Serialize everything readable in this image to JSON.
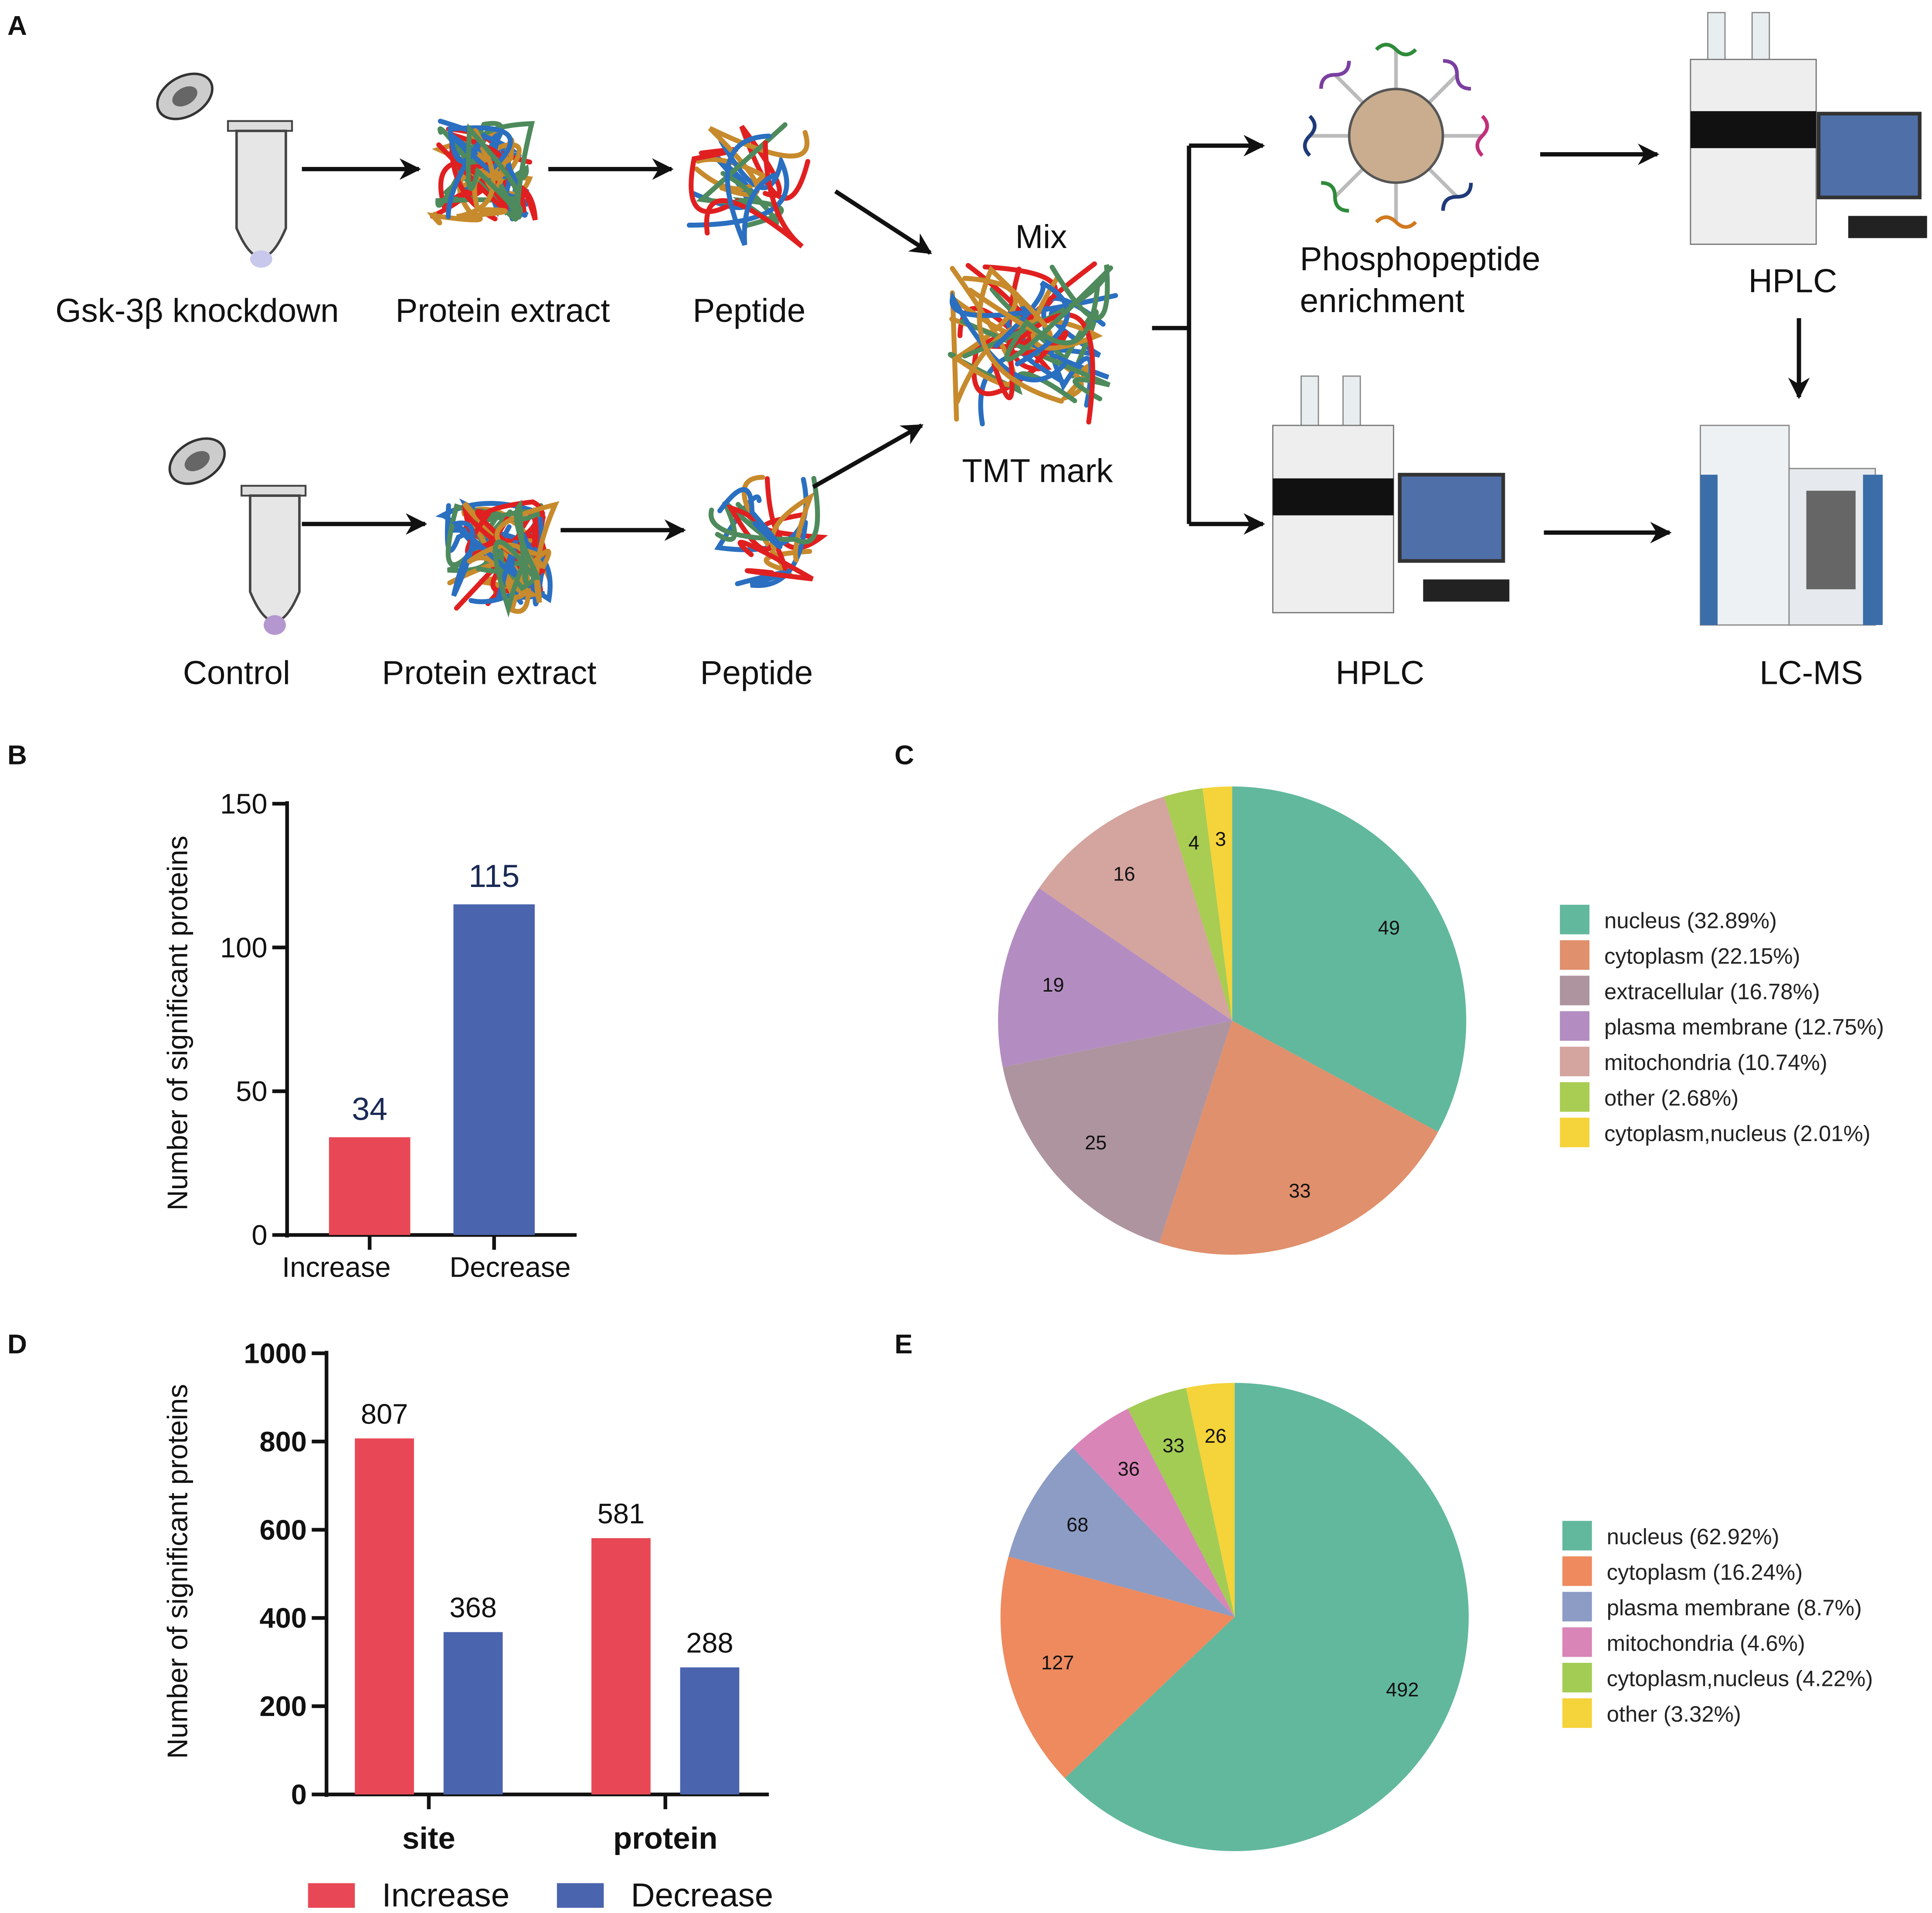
{
  "panels": {
    "a": "A",
    "b": "B",
    "c": "C",
    "d": "D",
    "e": "E"
  },
  "diagram": {
    "knockdown_label": "Gsk-3β knockdown",
    "control_label": "Control",
    "protein_extract_top": "Protein extract",
    "protein_extract_bottom": "Protein extract",
    "peptide_top": "Peptide",
    "peptide_bottom": "Peptide",
    "mix_label": "Mix",
    "tmt_label": "TMT mark",
    "phospho_line1": "Phosphopeptide",
    "phospho_line2": "enrichment",
    "hplc_top": "HPLC",
    "hplc_bottom": "HPLC",
    "lcms": "LC-MS",
    "strand_colors": [
      "#e02020",
      "#2a6fc0",
      "#c78a2c",
      "#4e8a5c"
    ]
  },
  "chart_data": [
    {
      "id": "B",
      "type": "bar",
      "ylabel": "Number of significant proteins",
      "categories": [
        "Increase",
        "Decrease"
      ],
      "values": [
        34,
        115
      ],
      "colors": [
        "#e84855",
        "#4a64ae"
      ],
      "ylim": [
        0,
        150
      ],
      "yticks": [
        0,
        50,
        100,
        150
      ],
      "grid": false
    },
    {
      "id": "C",
      "type": "pie",
      "slices": [
        {
          "label": "nucleus (32.89%)",
          "value": 49,
          "color": "#62b89d"
        },
        {
          "label": "cytoplasm (22.15%)",
          "value": 33,
          "color": "#e0906c"
        },
        {
          "label": "extracellular (16.78%)",
          "value": 25,
          "color": "#ae949f"
        },
        {
          "label": "plasma membrane (12.75%)",
          "value": 19,
          "color": "#b38dc1"
        },
        {
          "label": "mitochondria (10.74%)",
          "value": 16,
          "color": "#d4a49e"
        },
        {
          "label": "other (2.68%)",
          "value": 4,
          "color": "#a9cc52"
        },
        {
          "label": "cytoplasm,nucleus (2.01%)",
          "value": 3,
          "color": "#f5d33a"
        }
      ],
      "legend": "right"
    },
    {
      "id": "D",
      "type": "bar",
      "ylabel": "Number of significant proteins",
      "categories": [
        "site",
        "protein"
      ],
      "series": [
        {
          "name": "Increase",
          "values": [
            807,
            581
          ],
          "color": "#e84855"
        },
        {
          "name": "Decrease",
          "values": [
            368,
            288
          ],
          "color": "#4a64ae"
        }
      ],
      "ylim": [
        0,
        1000
      ],
      "yticks": [
        0,
        200,
        400,
        600,
        800,
        1000
      ],
      "grid": false,
      "legend": "bottom"
    },
    {
      "id": "E",
      "type": "pie",
      "slices": [
        {
          "label": "nucleus (62.92%)",
          "value": 492,
          "color": "#62b89d"
        },
        {
          "label": "cytoplasm (16.24%)",
          "value": 127,
          "color": "#ee8a5e"
        },
        {
          "label": "plasma membrane (8.7%)",
          "value": 68,
          "color": "#8c9cc5"
        },
        {
          "label": "mitochondria (4.6%)",
          "value": 36,
          "color": "#d985b8"
        },
        {
          "label": "cytoplasm,nucleus (4.22%)",
          "value": 33,
          "color": "#a3cc55"
        },
        {
          "label": "other (3.32%)",
          "value": 26,
          "color": "#f5d33a"
        }
      ],
      "legend": "right"
    }
  ]
}
